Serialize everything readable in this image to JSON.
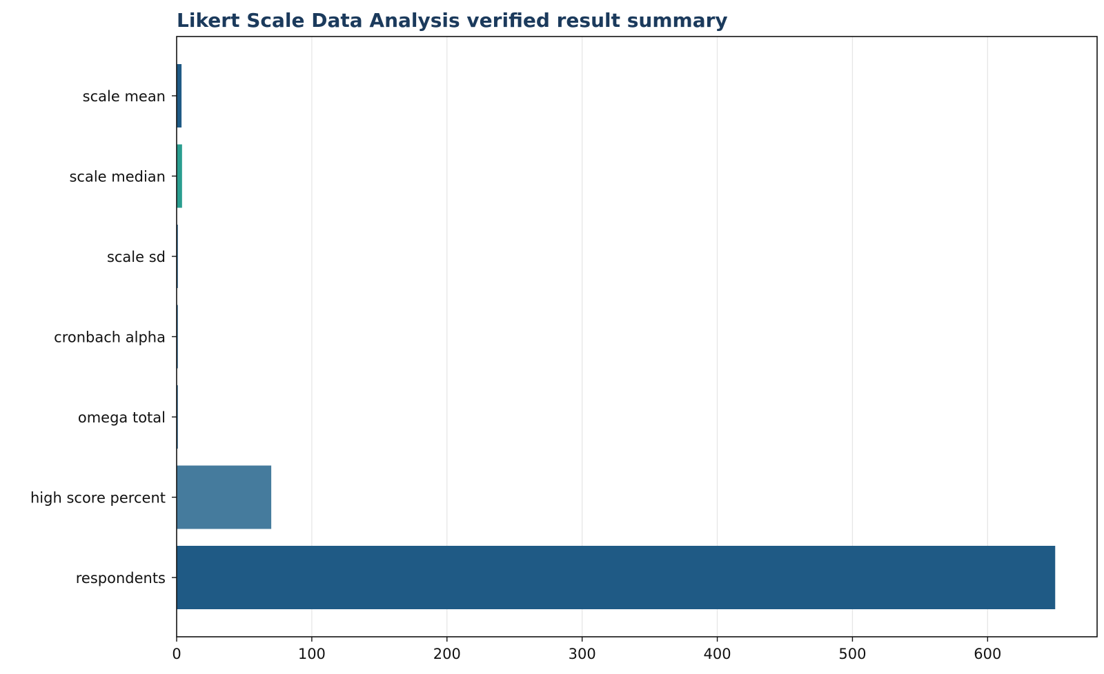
{
  "chart_data": {
    "type": "bar",
    "orientation": "horizontal",
    "title": "Likert Scale Data Analysis verified result summary",
    "xlabel": "",
    "ylabel": "",
    "categories": [
      "scale mean",
      "scale median",
      "scale sd",
      "cronbach alpha",
      "omega total",
      "high score percent",
      "respondents"
    ],
    "values": [
      3.62,
      4.0,
      0.89,
      0.87,
      0.88,
      70.0,
      650
    ],
    "colors": [
      "#1f5a85",
      "#2a9d8f",
      "#1f5a85",
      "#1f5a85",
      "#1f5a85",
      "#457b9d",
      "#1f5a85"
    ],
    "xlim": [
      0,
      681
    ],
    "xticks": [
      0,
      100,
      200,
      300,
      400,
      500,
      600
    ],
    "grid": "x",
    "legend": "none"
  }
}
